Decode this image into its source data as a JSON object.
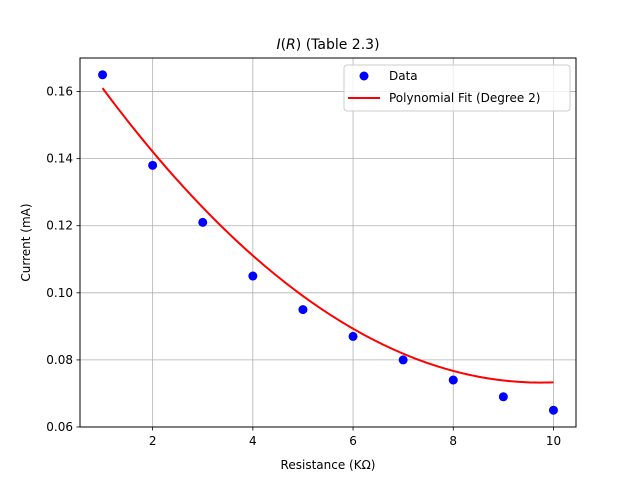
{
  "chart_data": {
    "type": "scatter",
    "title": {
      "italic": "I",
      "open": "(",
      "italic_var": "R",
      "rest": ") (Table 2.3)"
    },
    "xlabel": "Resistance (KΩ)",
    "ylabel": "Current (mA)",
    "xlim": [
      0.55,
      10.45
    ],
    "ylim": [
      0.06,
      0.17
    ],
    "xticks": [
      2,
      4,
      6,
      8,
      10
    ],
    "xtick_labels": [
      "2",
      "4",
      "6",
      "8",
      "10"
    ],
    "yticks": [
      0.06,
      0.08,
      0.1,
      0.12,
      0.14,
      0.16
    ],
    "ytick_labels": [
      "0.06",
      "0.08",
      "0.10",
      "0.12",
      "0.14",
      "0.16"
    ],
    "grid": true,
    "legend_position": "top-right",
    "series": [
      {
        "name": "Data",
        "kind": "scatter",
        "color": "#0000ff",
        "x": [
          1,
          2,
          3,
          4,
          5,
          6,
          7,
          8,
          9,
          10
        ],
        "y": [
          0.165,
          0.138,
          0.121,
          0.105,
          0.095,
          0.087,
          0.08,
          0.074,
          0.069,
          0.065
        ]
      },
      {
        "name": "Polynomial Fit (Degree 2)",
        "kind": "line",
        "color": "#ff0000",
        "fit_degree": 2,
        "coefficients": [
          0.18225,
          -0.022385,
          0.0011492
        ]
      }
    ]
  }
}
